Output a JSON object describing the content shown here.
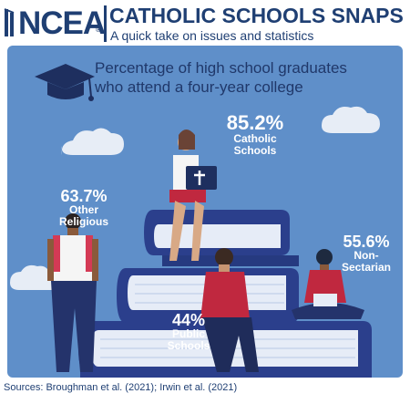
{
  "header": {
    "logo_text": "NCEA",
    "logo_mark": "®",
    "title": "CATHOLIC SCHOOLS SNAPS",
    "subtitle": "A quick take on issues and statistics"
  },
  "icons": {
    "cap": "graduation-cap-icon",
    "clouds": "cloud-icon"
  },
  "colors": {
    "panel": "#5f8fc9",
    "brand": "#1f3f73",
    "books_dark": "#2b3f8c",
    "books_page": "#e6ecf7"
  },
  "chart_data": {
    "type": "bar",
    "title": "Percentage of high school graduates who attend a four-year college",
    "categories": [
      "Catholic Schools",
      "Other Religious",
      "Non-Sectarian",
      "Public Schools"
    ],
    "values": [
      85.2,
      63.7,
      55.6,
      44
    ],
    "value_labels": [
      "85.2%",
      "63.7%",
      "55.6%",
      "44%"
    ],
    "category_labels": [
      [
        "Catholic",
        "Schools"
      ],
      [
        "Other",
        "Religious"
      ],
      [
        "Non-",
        "Sectarian"
      ],
      [
        "Public",
        "Schools"
      ]
    ],
    "unit": "%"
  },
  "source": "Sources: Broughman et al. (2021); Irwin et al. (2021)"
}
